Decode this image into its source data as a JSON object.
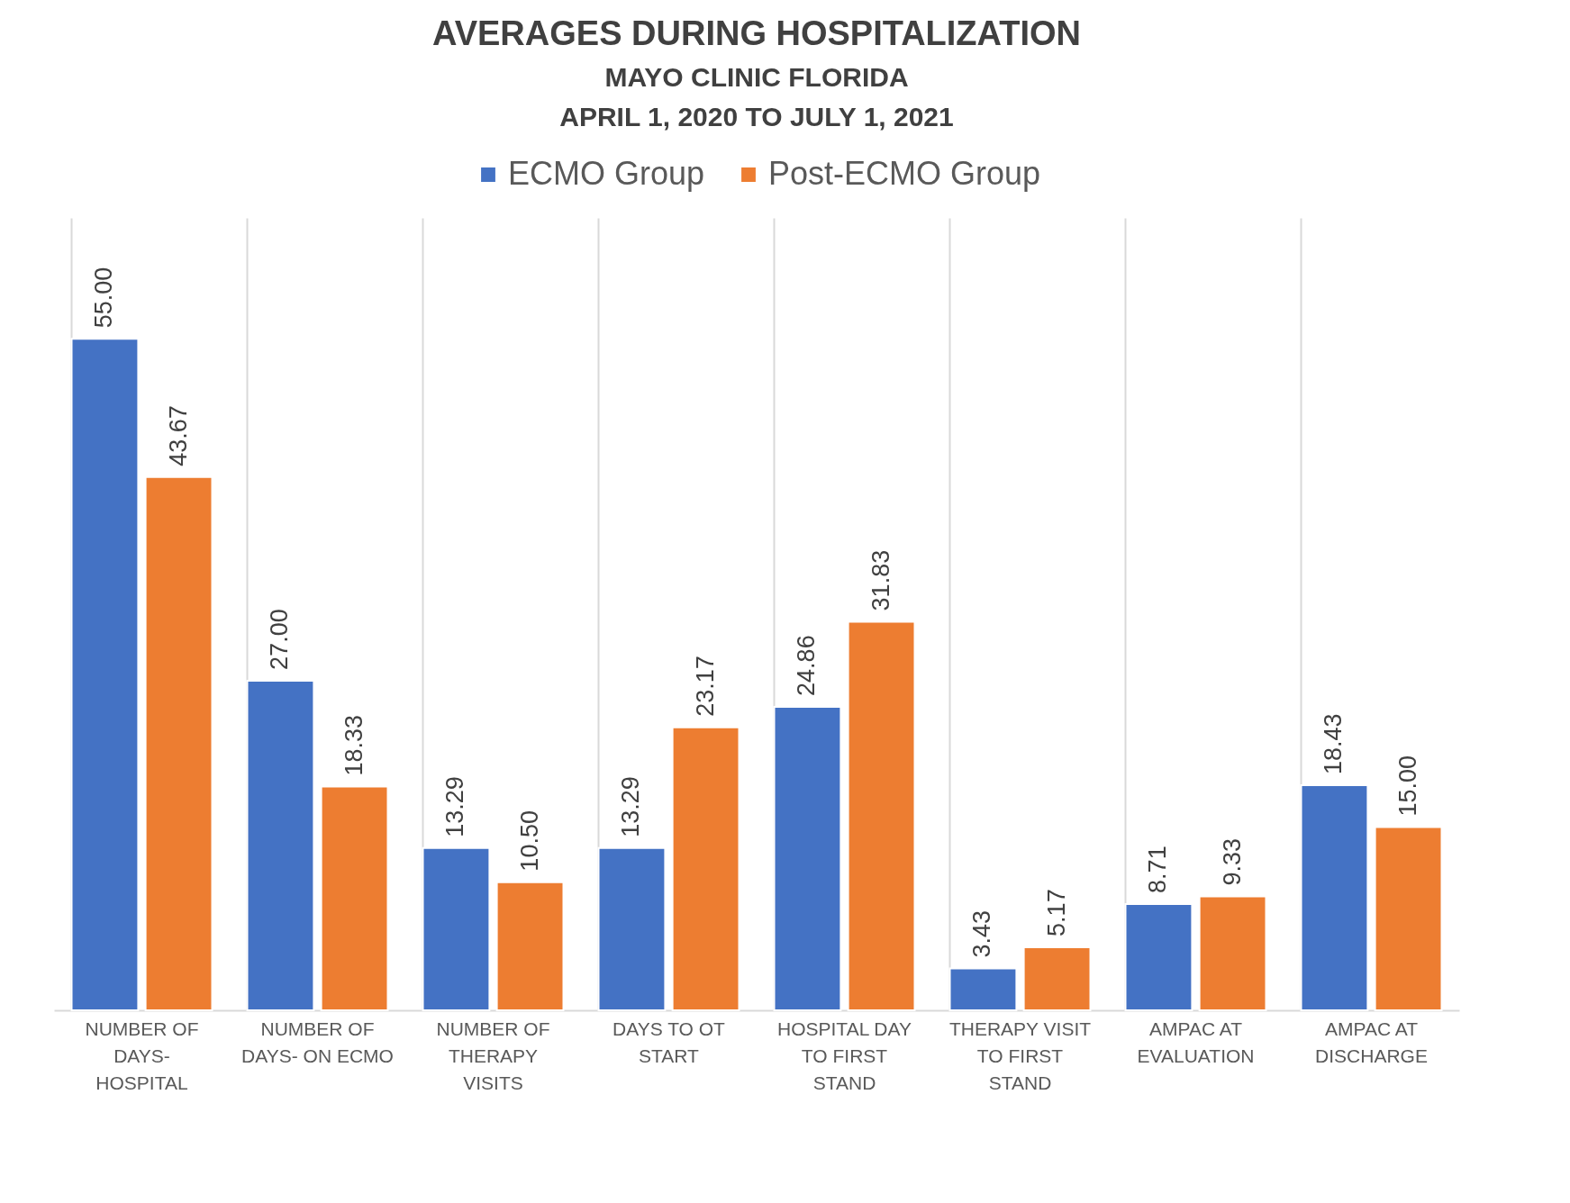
{
  "chart_data": {
    "type": "bar",
    "title": "AVERAGES DURING HOSPITALIZATION",
    "subtitle": "MAYO CLINIC FLORIDA",
    "annotations": [
      "APRIL 1, 2020 TO JULY 1, 2021"
    ],
    "categories": [
      "NUMBER OF DAYS- HOSPITAL",
      "NUMBER OF DAYS- ON ECMO",
      "NUMBER OF THERAPY VISITS",
      "DAYS TO OT START",
      "HOSPITAL DAY TO FIRST STAND",
      "THERAPY VISIT TO FIRST STAND",
      "AMPAC AT EVALUATION",
      "AMPAC AT DISCHARGE"
    ],
    "series": [
      {
        "name": "ECMO Group",
        "color": "#4472c4",
        "values": [
          55.0,
          27.0,
          13.29,
          13.29,
          24.86,
          3.43,
          8.71,
          18.43
        ],
        "value_labels": [
          "55.00",
          "27.00",
          "13.29",
          "13.29",
          "24.86",
          "3.43",
          "8.71",
          "18.43"
        ]
      },
      {
        "name": "Post-ECMO Group",
        "color": "#ed7d31",
        "values": [
          43.67,
          18.33,
          10.5,
          23.17,
          31.83,
          5.17,
          9.33,
          15.0
        ],
        "value_labels": [
          "43.67",
          "18.33",
          "10.50",
          "23.17",
          "31.83",
          "5.17",
          "9.33",
          "15.00"
        ]
      }
    ],
    "legend": "top",
    "grid": "x"
  }
}
